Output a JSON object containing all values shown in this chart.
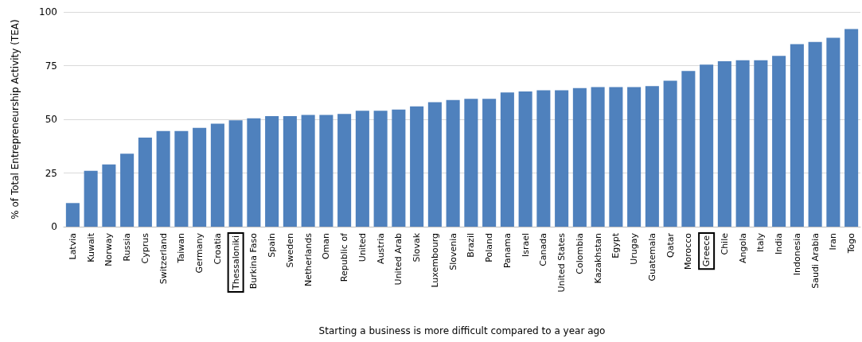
{
  "chart_data": {
    "type": "bar",
    "xlabel": "Starting a business is more difficult compared to a year ago",
    "ylabel": "% of Total Entrepreneurship Activity (TEA)",
    "categories": [
      "Latvia",
      "Kuwait",
      "Norway",
      "Russia",
      "Cyprus",
      "Switzerland",
      "Taiwan",
      "Germany",
      "Croatia",
      "Thessaloniki",
      "Burkina Faso",
      "Spain",
      "Sweden",
      "Netherlands",
      "Oman",
      "Republic of",
      "United",
      "Austria",
      "United Arab",
      "Slovak",
      "Luxembourg",
      "Slovenia",
      "Brazil",
      "Poland",
      "Panama",
      "Israel",
      "Canada",
      "United States",
      "Colombia",
      "Kazakhstan",
      "Egypt",
      "Urugay",
      "Guatemala",
      "Qatar",
      "Morocco",
      "Greece",
      "Chile",
      "Angola",
      "Italy",
      "India",
      "Indonesia",
      "Saudi Arabia",
      "Iran",
      "Togo"
    ],
    "values": [
      11,
      26,
      29,
      34,
      41.5,
      44.5,
      44.5,
      46,
      48,
      49.5,
      50.5,
      51.5,
      51.5,
      52,
      52,
      52.5,
      54,
      54,
      54.5,
      56,
      58,
      59,
      59.5,
      59.5,
      62.5,
      63,
      63.5,
      63.5,
      64.5,
      65,
      65,
      65,
      65.5,
      68,
      72.5,
      75.5,
      77,
      77.5,
      77.5,
      79.5,
      85,
      86,
      88,
      92
    ],
    "color": "#4f81bd",
    "ylim": [
      0,
      100
    ],
    "yticks": [
      0,
      25,
      50,
      75,
      100
    ],
    "grid": "y"
  }
}
